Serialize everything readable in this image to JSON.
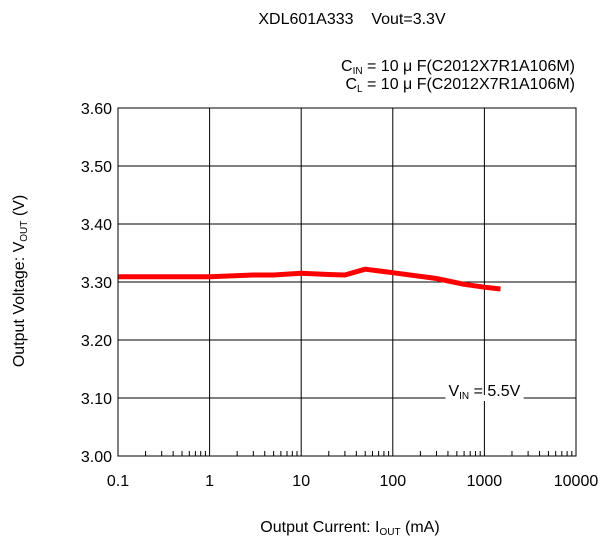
{
  "chart_data": {
    "type": "line",
    "title": "XDL601A333    Vout=3.3V",
    "conditions": {
      "cin": {
        "prefix": "C",
        "sub": "IN",
        "suffix": " = 10 μ F(C2012X7R1A106M)"
      },
      "cl": {
        "prefix": "C",
        "sub": "L",
        "suffix": " = 10 μ F(C2012X7R1A106M)"
      }
    },
    "xlabel": {
      "prefix": "Output Current: I",
      "sub": "OUT",
      "suffix": " (mA)"
    },
    "ylabel": {
      "prefix": "Output Voltage: V",
      "sub": "OUT",
      "suffix": " (V)"
    },
    "x_scale": "log",
    "xlim": [
      0.1,
      10000
    ],
    "ylim": [
      3.0,
      3.6
    ],
    "x_ticks": [
      "0.1",
      "1",
      "10",
      "100",
      "1000",
      "10000"
    ],
    "y_ticks": [
      "3.00",
      "3.10",
      "3.20",
      "3.30",
      "3.40",
      "3.50",
      "3.60"
    ],
    "grid": true,
    "series": [
      {
        "color": "#ff0000",
        "x": [
          0.1,
          0.3,
          1,
          3,
          5,
          10,
          20,
          30,
          50,
          100,
          300,
          600,
          1000,
          1500
        ],
        "y": [
          3.309,
          3.309,
          3.309,
          3.312,
          3.312,
          3.315,
          3.313,
          3.312,
          3.322,
          3.316,
          3.306,
          3.296,
          3.291,
          3.288
        ]
      }
    ],
    "annotation": {
      "prefix": "V",
      "sub": "IN",
      "suffix": " = 5.5V",
      "x": 1000,
      "y": 3.1
    }
  }
}
